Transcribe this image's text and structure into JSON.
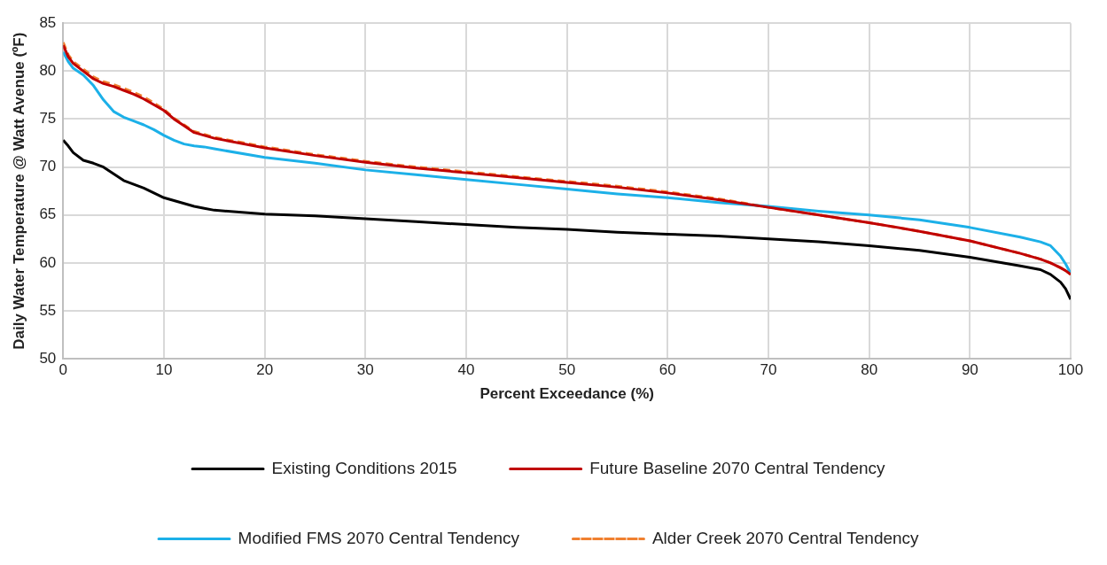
{
  "chart_data": {
    "type": "line",
    "xlabel": "Percent Exceedance (%)",
    "ylabel": "Daily Water Temperature @ Watt Avenue (ºF)",
    "x": [
      0,
      0.5,
      1,
      2,
      3,
      4,
      5,
      6,
      7,
      8,
      9,
      10,
      11,
      12,
      13,
      14,
      15,
      20,
      25,
      30,
      35,
      40,
      45,
      50,
      55,
      60,
      65,
      70,
      75,
      80,
      85,
      90,
      95,
      97,
      98,
      99,
      99.5,
      100
    ],
    "xlim": [
      0,
      100
    ],
    "xticks": [
      0,
      10,
      20,
      30,
      40,
      50,
      60,
      70,
      80,
      90,
      100
    ],
    "ylim": [
      50,
      85
    ],
    "yticks": [
      50,
      55,
      60,
      65,
      70,
      75,
      80,
      85
    ],
    "grid": true,
    "legend": "bottom",
    "marker": "none",
    "series": [
      {
        "name": "Existing Conditions 2015",
        "color": "#000000",
        "line_style": "solid",
        "values": [
          72.8,
          72.2,
          71.5,
          70.7,
          70.4,
          70.0,
          69.3,
          68.6,
          68.2,
          67.8,
          67.3,
          66.8,
          66.5,
          66.2,
          65.9,
          65.7,
          65.5,
          65.1,
          64.9,
          64.6,
          64.3,
          64.0,
          63.7,
          63.5,
          63.2,
          63.0,
          62.8,
          62.5,
          62.2,
          61.8,
          61.3,
          60.6,
          59.7,
          59.3,
          58.8,
          58.0,
          57.3,
          56.2
        ]
      },
      {
        "name": "Future Baseline 2070 Central Tendency",
        "color": "#c00000",
        "line_style": "solid",
        "values": [
          82.7,
          81.5,
          80.8,
          80.0,
          79.2,
          78.7,
          78.4,
          78.0,
          77.6,
          77.1,
          76.5,
          75.9,
          75.0,
          74.3,
          73.6,
          73.3,
          73.0,
          72.0,
          71.2,
          70.5,
          69.9,
          69.4,
          68.9,
          68.4,
          67.9,
          67.3,
          66.6,
          65.8,
          65.0,
          64.2,
          63.3,
          62.3,
          61.0,
          60.4,
          60.0,
          59.5,
          59.2,
          58.8
        ]
      },
      {
        "name": "Modified FMS 2070 Central Tendency",
        "color": "#1cb0e8",
        "line_style": "solid",
        "values": [
          82.0,
          81.0,
          80.3,
          79.6,
          78.5,
          77.0,
          75.8,
          75.2,
          74.8,
          74.4,
          73.9,
          73.3,
          72.8,
          72.4,
          72.2,
          72.1,
          71.9,
          71.0,
          70.4,
          69.7,
          69.2,
          68.7,
          68.2,
          67.7,
          67.2,
          66.8,
          66.3,
          65.9,
          65.4,
          65.0,
          64.5,
          63.7,
          62.7,
          62.2,
          61.8,
          60.7,
          59.9,
          58.9
        ]
      },
      {
        "name": "Alder Creek 2070 Central Tendency",
        "color": "#f08030",
        "line_style": "dashed",
        "values": [
          83.0,
          81.7,
          81.0,
          80.2,
          79.4,
          78.9,
          78.6,
          78.2,
          77.8,
          77.3,
          76.7,
          76.0,
          75.1,
          74.4,
          73.7,
          73.4,
          73.1,
          72.1,
          71.3,
          70.6,
          70.0,
          69.5,
          69.0,
          68.5,
          68.0,
          67.4,
          66.7,
          65.8,
          65.0,
          64.2,
          63.3,
          62.3,
          61.0,
          60.4,
          60.0,
          59.5,
          59.2,
          58.8
        ]
      }
    ]
  }
}
